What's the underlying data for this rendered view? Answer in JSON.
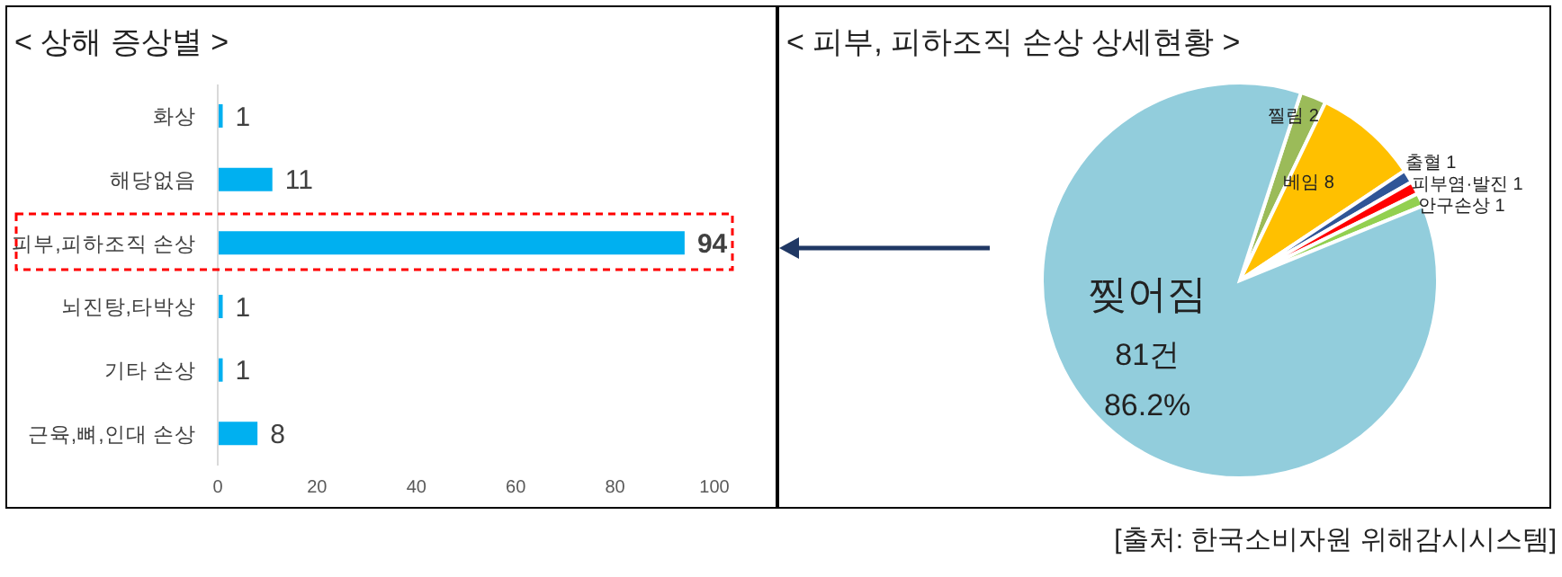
{
  "chart_data": [
    {
      "type": "bar",
      "title": "< 상해 증상별 >",
      "orientation": "horizontal",
      "categories": [
        "화상",
        "해당없음",
        "피부,피하조직 손상",
        "뇌진탕,타박상",
        "기타 손상",
        "근육,뼈,인대 손상"
      ],
      "values": [
        1,
        11,
        94,
        1,
        1,
        8
      ],
      "color": "#00b0f0",
      "xlim": [
        0,
        100
      ],
      "xticks": [
        0,
        20,
        40,
        60,
        80,
        100
      ],
      "data_labels": true
    },
    {
      "type": "pie",
      "title": "< 피부, 피하조직 손상 상세현황 >",
      "categories": [
        "찔림",
        "베임",
        "출혈",
        "피부염·발진",
        "안구손상",
        "찢어짐"
      ],
      "values": [
        2,
        8,
        1,
        1,
        1,
        81
      ],
      "colors": [
        "#9bbb59",
        "#ffc000",
        "#2f5597",
        "#ff0000",
        "#92d050",
        "#92cddc"
      ],
      "value_labels": [
        "2",
        "8",
        "1",
        "1",
        "1",
        "81건 86.2%"
      ],
      "annotations": [
        "[출처: 한국소비자원 위해감시시스템]"
      ]
    }
  ]
}
